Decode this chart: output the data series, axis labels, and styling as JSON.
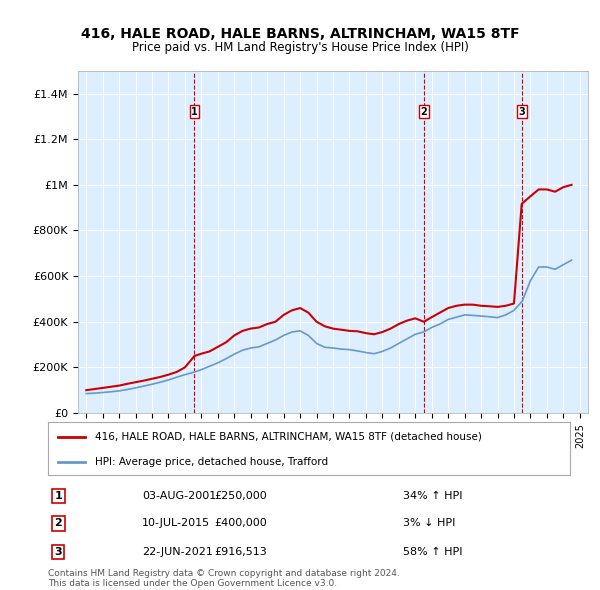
{
  "title1": "416, HALE ROAD, HALE BARNS, ALTRINCHAM, WA15 8TF",
  "title2": "Price paid vs. HM Land Registry's House Price Index (HPI)",
  "legend_line1": "416, HALE ROAD, HALE BARNS, ALTRINCHAM, WA15 8TF (detached house)",
  "legend_line2": "HPI: Average price, detached house, Trafford",
  "footer1": "Contains HM Land Registry data © Crown copyright and database right 2024.",
  "footer2": "This data is licensed under the Open Government Licence v3.0.",
  "transactions": [
    {
      "num": "1",
      "date": "03-AUG-2001",
      "price": "£250,000",
      "hpi": "34% ↑ HPI",
      "year": 2001.58
    },
    {
      "num": "2",
      "date": "10-JUL-2015",
      "price": "£400,000",
      "hpi": "3% ↓ HPI",
      "year": 2015.52
    },
    {
      "num": "3",
      "date": "22-JUN-2021",
      "price": "£916,513",
      "hpi": "58% ↑ HPI",
      "year": 2021.47
    }
  ],
  "xlim": [
    1994.5,
    2025.5
  ],
  "ylim": [
    0,
    1500000
  ],
  "yticks": [
    0,
    200000,
    400000,
    600000,
    800000,
    1000000,
    1200000,
    1400000
  ],
  "ytick_labels": [
    "£0",
    "£200K",
    "£400K",
    "£600K",
    "£800K",
    "£1M",
    "£1.2M",
    "£1.4M"
  ],
  "price_paid_color": "#cc0000",
  "hpi_color": "#6699cc",
  "vline_color": "#cc0000",
  "bg_color": "#ddeeff",
  "plot_bg": "#ddeeff",
  "price_paid_x": [
    1995.0,
    1995.5,
    1996.0,
    1996.5,
    1997.0,
    1997.5,
    1998.0,
    1998.5,
    1999.0,
    1999.5,
    2000.0,
    2000.5,
    2001.0,
    2001.58,
    2002.0,
    2002.5,
    2003.0,
    2003.5,
    2004.0,
    2004.5,
    2005.0,
    2005.5,
    2006.0,
    2006.5,
    2007.0,
    2007.5,
    2008.0,
    2008.5,
    2009.0,
    2009.5,
    2010.0,
    2010.5,
    2011.0,
    2011.5,
    2012.0,
    2012.5,
    2013.0,
    2013.5,
    2014.0,
    2014.5,
    2015.0,
    2015.52,
    2016.0,
    2016.5,
    2017.0,
    2017.5,
    2018.0,
    2018.5,
    2019.0,
    2019.5,
    2020.0,
    2020.5,
    2021.0,
    2021.47,
    2022.0,
    2022.5,
    2023.0,
    2023.5,
    2024.0,
    2024.5
  ],
  "price_paid_y": [
    100000,
    105000,
    110000,
    115000,
    120000,
    128000,
    135000,
    142000,
    150000,
    158000,
    168000,
    180000,
    200000,
    250000,
    260000,
    270000,
    290000,
    310000,
    340000,
    360000,
    370000,
    375000,
    390000,
    400000,
    430000,
    450000,
    460000,
    440000,
    400000,
    380000,
    370000,
    365000,
    360000,
    358000,
    350000,
    345000,
    355000,
    370000,
    390000,
    405000,
    415000,
    400000,
    420000,
    440000,
    460000,
    470000,
    475000,
    475000,
    470000,
    468000,
    465000,
    470000,
    480000,
    916513,
    950000,
    980000,
    980000,
    970000,
    990000,
    1000000
  ],
  "hpi_x": [
    1995.0,
    1995.5,
    1996.0,
    1996.5,
    1997.0,
    1997.5,
    1998.0,
    1998.5,
    1999.0,
    1999.5,
    2000.0,
    2000.5,
    2001.0,
    2001.5,
    2002.0,
    2002.5,
    2003.0,
    2003.5,
    2004.0,
    2004.5,
    2005.0,
    2005.5,
    2006.0,
    2006.5,
    2007.0,
    2007.5,
    2008.0,
    2008.5,
    2009.0,
    2009.5,
    2010.0,
    2010.5,
    2011.0,
    2011.5,
    2012.0,
    2012.5,
    2013.0,
    2013.5,
    2014.0,
    2014.5,
    2015.0,
    2015.5,
    2016.0,
    2016.5,
    2017.0,
    2017.5,
    2018.0,
    2018.5,
    2019.0,
    2019.5,
    2020.0,
    2020.5,
    2021.0,
    2021.5,
    2022.0,
    2022.5,
    2023.0,
    2023.5,
    2024.0,
    2024.5
  ],
  "hpi_y": [
    85000,
    87000,
    90000,
    93000,
    97000,
    103000,
    110000,
    118000,
    126000,
    135000,
    145000,
    157000,
    168000,
    178000,
    190000,
    205000,
    220000,
    238000,
    258000,
    275000,
    285000,
    290000,
    305000,
    320000,
    340000,
    355000,
    360000,
    340000,
    305000,
    288000,
    285000,
    280000,
    278000,
    272000,
    265000,
    260000,
    270000,
    285000,
    305000,
    325000,
    345000,
    355000,
    375000,
    390000,
    410000,
    420000,
    430000,
    428000,
    425000,
    422000,
    418000,
    430000,
    450000,
    490000,
    580000,
    640000,
    640000,
    630000,
    650000,
    670000
  ]
}
